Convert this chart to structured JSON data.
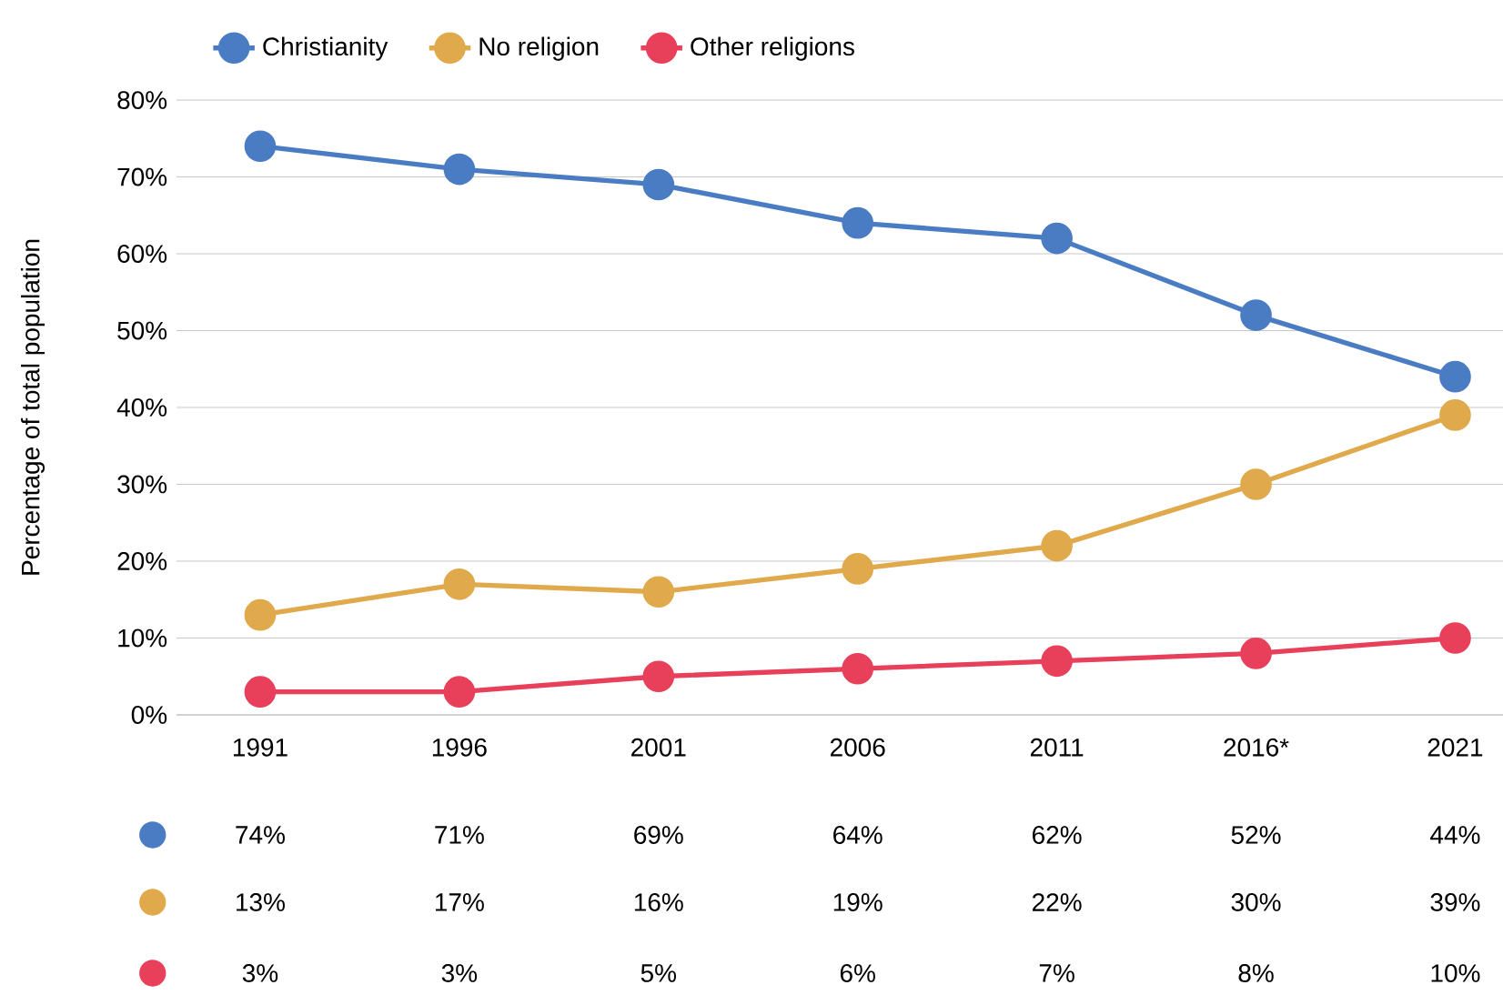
{
  "chart_data": {
    "type": "line",
    "ylabel": "Percentage of total population",
    "categories": [
      "1991",
      "1996",
      "2001",
      "2006",
      "2011",
      "2016*",
      "2021"
    ],
    "series": [
      {
        "name": "Christianity",
        "color": "#4a7cc4",
        "values": [
          74,
          71,
          69,
          64,
          62,
          52,
          44
        ],
        "value_labels": [
          "74%",
          "71%",
          "69%",
          "64%",
          "62%",
          "52%",
          "44%"
        ]
      },
      {
        "name": "No religion",
        "color": "#e0aa4c",
        "values": [
          13,
          17,
          16,
          19,
          22,
          30,
          39
        ],
        "value_labels": [
          "13%",
          "17%",
          "16%",
          "19%",
          "22%",
          "30%",
          "39%"
        ]
      },
      {
        "name": "Other religions",
        "color": "#e8405a",
        "values": [
          3,
          3,
          5,
          6,
          7,
          8,
          10
        ],
        "value_labels": [
          "3%",
          "3%",
          "5%",
          "6%",
          "7%",
          "8%",
          "10%"
        ]
      }
    ],
    "ylim": [
      0,
      80
    ],
    "yticks": [
      {
        "value": 0,
        "label": "0%"
      },
      {
        "value": 10,
        "label": "10%"
      },
      {
        "value": 20,
        "label": "20%"
      },
      {
        "value": 30,
        "label": "30%"
      },
      {
        "value": 40,
        "label": "40%"
      },
      {
        "value": 50,
        "label": "50%"
      },
      {
        "value": 60,
        "label": "60%"
      },
      {
        "value": 70,
        "label": "70%"
      },
      {
        "value": 80,
        "label": "80%"
      }
    ],
    "grid": "y",
    "legend": "top left",
    "marker": "circle",
    "line_style": "solid"
  }
}
